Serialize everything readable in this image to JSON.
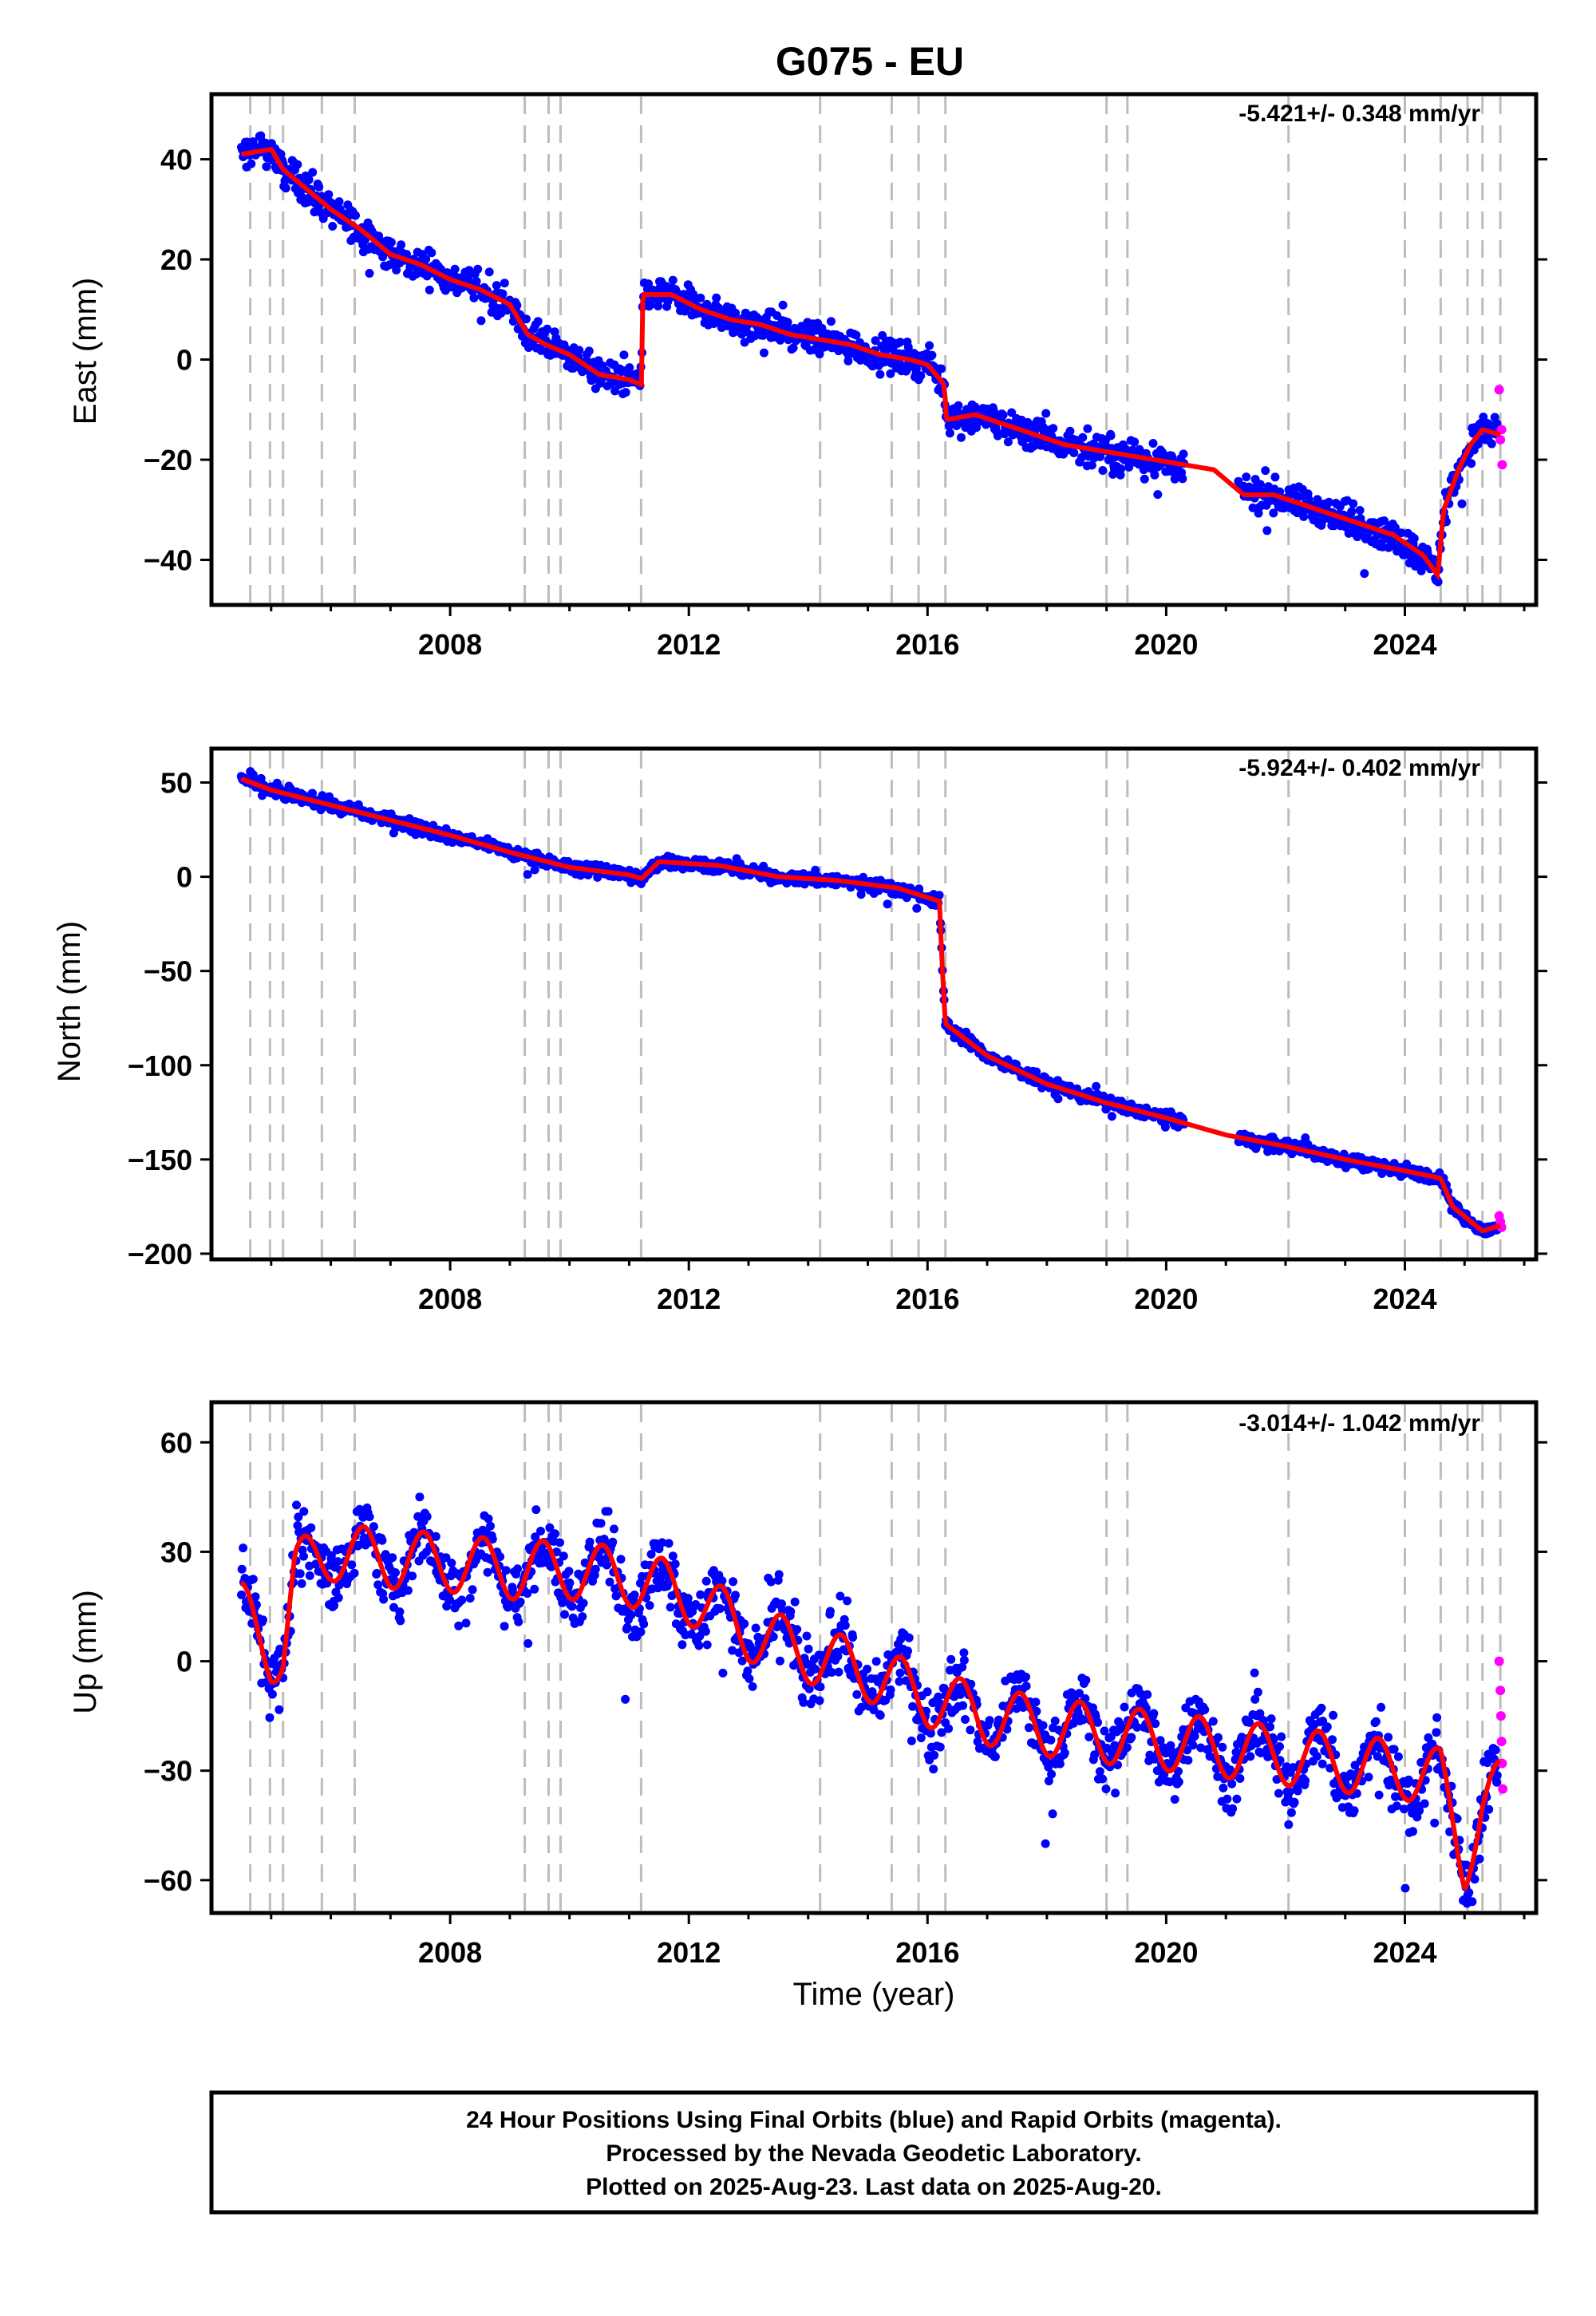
{
  "title": "G075 - EU",
  "colors": {
    "final_orbits": "#0000ff",
    "rapid_orbits": "#ff00ff",
    "model": "#ff0000",
    "steps": "#bdbdbd",
    "frame": "#000000"
  },
  "xlabel": "Time (year)",
  "footer": {
    "line1": "24 Hour Positions Using Final Orbits (blue) and Rapid Orbits (magenta).",
    "line2": "Processed by the Nevada Geodetic Laboratory.",
    "line3": "Plotted on 2025-Aug-23. Last data on 2025-Aug-20."
  },
  "chart_data": [
    {
      "type": "scatter",
      "id": "east",
      "ylabel": "East (mm)",
      "rate": "-5.421+/- 0.348 mm/yr",
      "xlim": [
        2004.0,
        2026.2
      ],
      "ylim": [
        -49,
        53
      ],
      "xticks": [
        2008,
        2012,
        2016,
        2020,
        2024
      ],
      "yticks": [
        -40,
        -20,
        0,
        20,
        40
      ],
      "ytick_labels": [
        "−40",
        "−20",
        "0",
        "20",
        "40"
      ],
      "grid": false,
      "step_epochs": [
        2004.65,
        2004.98,
        2005.2,
        2005.85,
        2006.4,
        2009.25,
        2009.65,
        2009.85,
        2011.2,
        2014.2,
        2015.4,
        2015.85,
        2016.3,
        2019.0,
        2019.35,
        2022.05,
        2024.0,
        2024.6,
        2025.05,
        2025.3,
        2025.6
      ],
      "trend": {
        "x": [
          2004.5,
          2005.0,
          2005.2,
          2006.0,
          2006.5,
          2007.0,
          2007.5,
          2008.0,
          2008.5,
          2009.0,
          2009.3,
          2009.6,
          2010.0,
          2010.5,
          2011.0,
          2011.21,
          2011.23,
          2011.7,
          2012.2,
          2012.7,
          2013.2,
          2013.7,
          2014.2,
          2014.7,
          2015.2,
          2015.7,
          2016.0,
          2016.28,
          2016.32,
          2016.8,
          2017.3,
          2017.8,
          2018.3,
          2018.8,
          2019.3,
          2019.8,
          2020.3,
          2020.8,
          2021.3,
          2021.8,
          2022.3,
          2022.8,
          2023.3,
          2023.8,
          2024.3,
          2024.55,
          2024.65,
          2024.9,
          2025.1,
          2025.3,
          2025.6
        ],
        "y": [
          41,
          42,
          38,
          30,
          26,
          21,
          19,
          16,
          14,
          11,
          5,
          3,
          1,
          -3,
          -4,
          -5,
          13,
          13,
          10,
          8,
          7,
          5,
          4,
          3,
          1,
          0,
          -1,
          -5,
          -12,
          -11,
          -13,
          -15,
          -17,
          -18,
          -19,
          -20,
          -21,
          -22,
          -27,
          -27,
          -29,
          -31,
          -33,
          -35,
          -39,
          -43,
          -30,
          -22,
          -17,
          -14,
          -15
        ]
      },
      "scatter_noise": 2.8,
      "rapid": {
        "x": [
          2025.58,
          2025.6,
          2025.62,
          2025.63
        ],
        "y": [
          -6,
          -16,
          -14,
          -21
        ]
      }
    },
    {
      "type": "scatter",
      "id": "north",
      "ylabel": "North (mm)",
      "rate": "-5.924+/- 0.402 mm/yr",
      "xlim": [
        2004.0,
        2026.2
      ],
      "ylim": [
        -203,
        68
      ],
      "xticks": [
        2008,
        2012,
        2016,
        2020,
        2024
      ],
      "yticks": [
        -200,
        -150,
        -100,
        -50,
        0,
        50
      ],
      "ytick_labels": [
        "−200",
        "−150",
        "−100",
        "−50",
        "0",
        "50"
      ],
      "grid": false,
      "step_epochs": [
        2004.65,
        2004.98,
        2005.2,
        2005.85,
        2006.4,
        2009.25,
        2009.65,
        2009.85,
        2011.2,
        2014.2,
        2015.4,
        2015.85,
        2016.3,
        2019.0,
        2019.35,
        2022.05,
        2024.0,
        2024.6,
        2025.05,
        2025.3,
        2025.6
      ],
      "trend": {
        "x": [
          2004.5,
          2005.0,
          2006.0,
          2007.0,
          2008.0,
          2009.0,
          2010.0,
          2011.0,
          2011.21,
          2011.5,
          2012.5,
          2013.5,
          2014.5,
          2015.5,
          2016.2,
          2016.25,
          2016.3,
          2017.0,
          2018.0,
          2019.0,
          2020.0,
          2021.0,
          2022.0,
          2023.0,
          2024.0,
          2024.6,
          2024.8,
          2025.3,
          2025.6
        ],
        "y": [
          52,
          46,
          38,
          30,
          22,
          13,
          5,
          1,
          -1,
          8,
          6,
          0,
          -2,
          -6,
          -13,
          -50,
          -78,
          -95,
          -110,
          -120,
          -128,
          -137,
          -143,
          -150,
          -156,
          -160,
          -175,
          -188,
          -185
        ]
      },
      "scatter_noise": 3.0,
      "rapid": {
        "x": [
          2025.58,
          2025.6,
          2025.62
        ],
        "y": [
          -180,
          -183,
          -186
        ]
      }
    },
    {
      "type": "scatter",
      "id": "up",
      "ylabel": "Up (mm)",
      "rate": "-3.014+/- 1.042 mm/yr",
      "xlim": [
        2004.0,
        2026.2
      ],
      "ylim": [
        -69,
        71
      ],
      "xticks": [
        2008,
        2012,
        2016,
        2020,
        2024
      ],
      "yticks": [
        -60,
        -30,
        0,
        30,
        60
      ],
      "ytick_labels": [
        "−60",
        "−30",
        "0",
        "30",
        "60"
      ],
      "grid": false,
      "step_epochs": [
        2004.65,
        2004.98,
        2005.2,
        2005.85,
        2006.4,
        2009.25,
        2009.65,
        2009.85,
        2011.2,
        2014.2,
        2015.4,
        2015.85,
        2016.3,
        2019.0,
        2019.35,
        2022.05,
        2024.0,
        2024.6,
        2025.05,
        2025.3,
        2025.6
      ],
      "trend": {
        "x": [
          2004.5,
          2005.0,
          2005.2,
          2005.4,
          2006.0,
          2007.0,
          2008.0,
          2009.0,
          2010.0,
          2011.0,
          2012.0,
          2013.0,
          2014.0,
          2015.0,
          2016.0,
          2017.0,
          2018.0,
          2019.0,
          2020.0,
          2021.0,
          2022.0,
          2023.0,
          2024.0,
          2024.6,
          2025.0,
          2025.3,
          2025.6
        ],
        "y": [
          14,
          2,
          3,
          25,
          30,
          28,
          27,
          25,
          25,
          23,
          18,
          8,
          2,
          -3,
          -10,
          -15,
          -18,
          -20,
          -22,
          -24,
          -26,
          -28,
          -30,
          -32,
          -55,
          -40,
          -35
        ]
      },
      "seasonal_amp": 8,
      "scatter_noise": 8,
      "rapid": {
        "x": [
          2025.58,
          2025.6,
          2025.61,
          2025.62,
          2025.63,
          2025.64
        ],
        "y": [
          0,
          -8,
          -15,
          -22,
          -28,
          -35
        ]
      }
    }
  ]
}
